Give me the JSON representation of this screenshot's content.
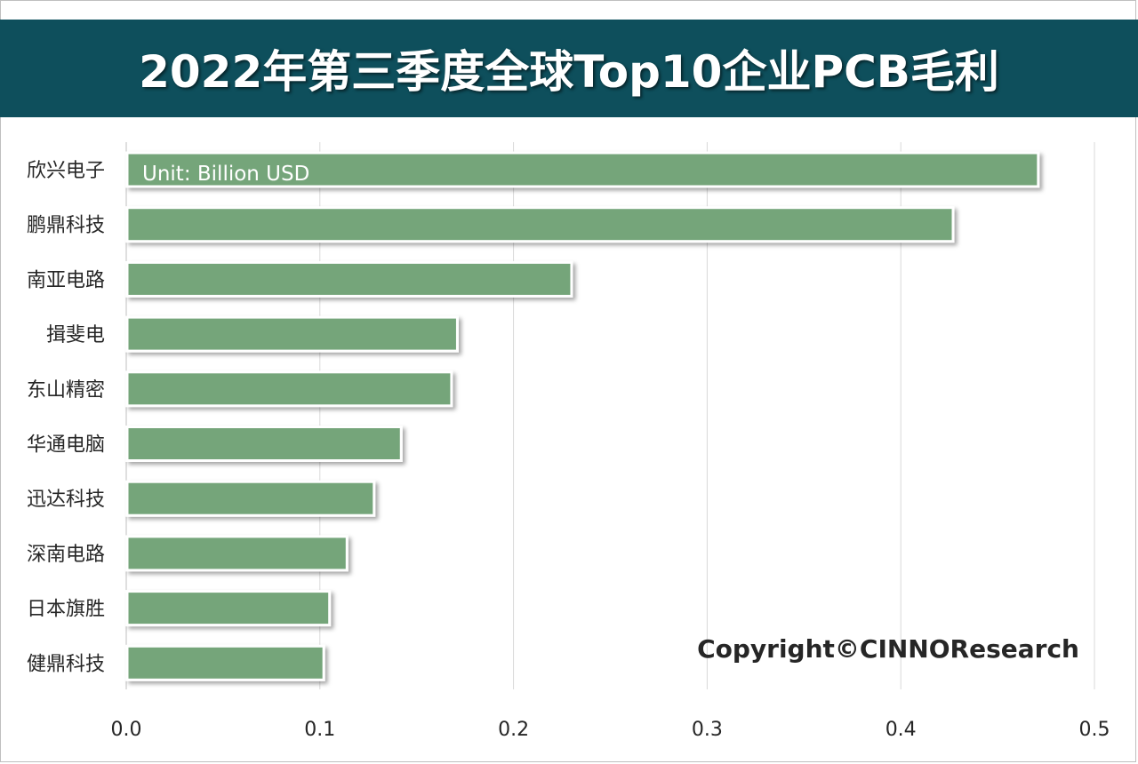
{
  "title": "2022年第三季度全球Top10企业PCB毛利",
  "unit_note": "Unit: Billion USD",
  "copyright": "Copyright©CINNOResearch",
  "colors": {
    "title_bg": "#0e4f5c",
    "bar": "#74a57a",
    "grid": "#d9d9d9"
  },
  "chart_data": {
    "type": "bar",
    "orientation": "horizontal",
    "title": "2022年第三季度全球Top10企业PCB毛利",
    "xlabel": "",
    "ylabel": "",
    "xlim": [
      0,
      0.5
    ],
    "xticks": [
      "0.0",
      "0.1",
      "0.2",
      "0.3",
      "0.4",
      "0.5"
    ],
    "grid": true,
    "categories": [
      "欣兴电子",
      "鹏鼎科技",
      "南亚电路",
      "揖斐电",
      "东山精密",
      "华通电脑",
      "迅达科技",
      "深南电路",
      "日本旗胜",
      "健鼎科技"
    ],
    "values": [
      0.471,
      0.427,
      0.23,
      0.171,
      0.168,
      0.142,
      0.128,
      0.114,
      0.105,
      0.102
    ]
  }
}
